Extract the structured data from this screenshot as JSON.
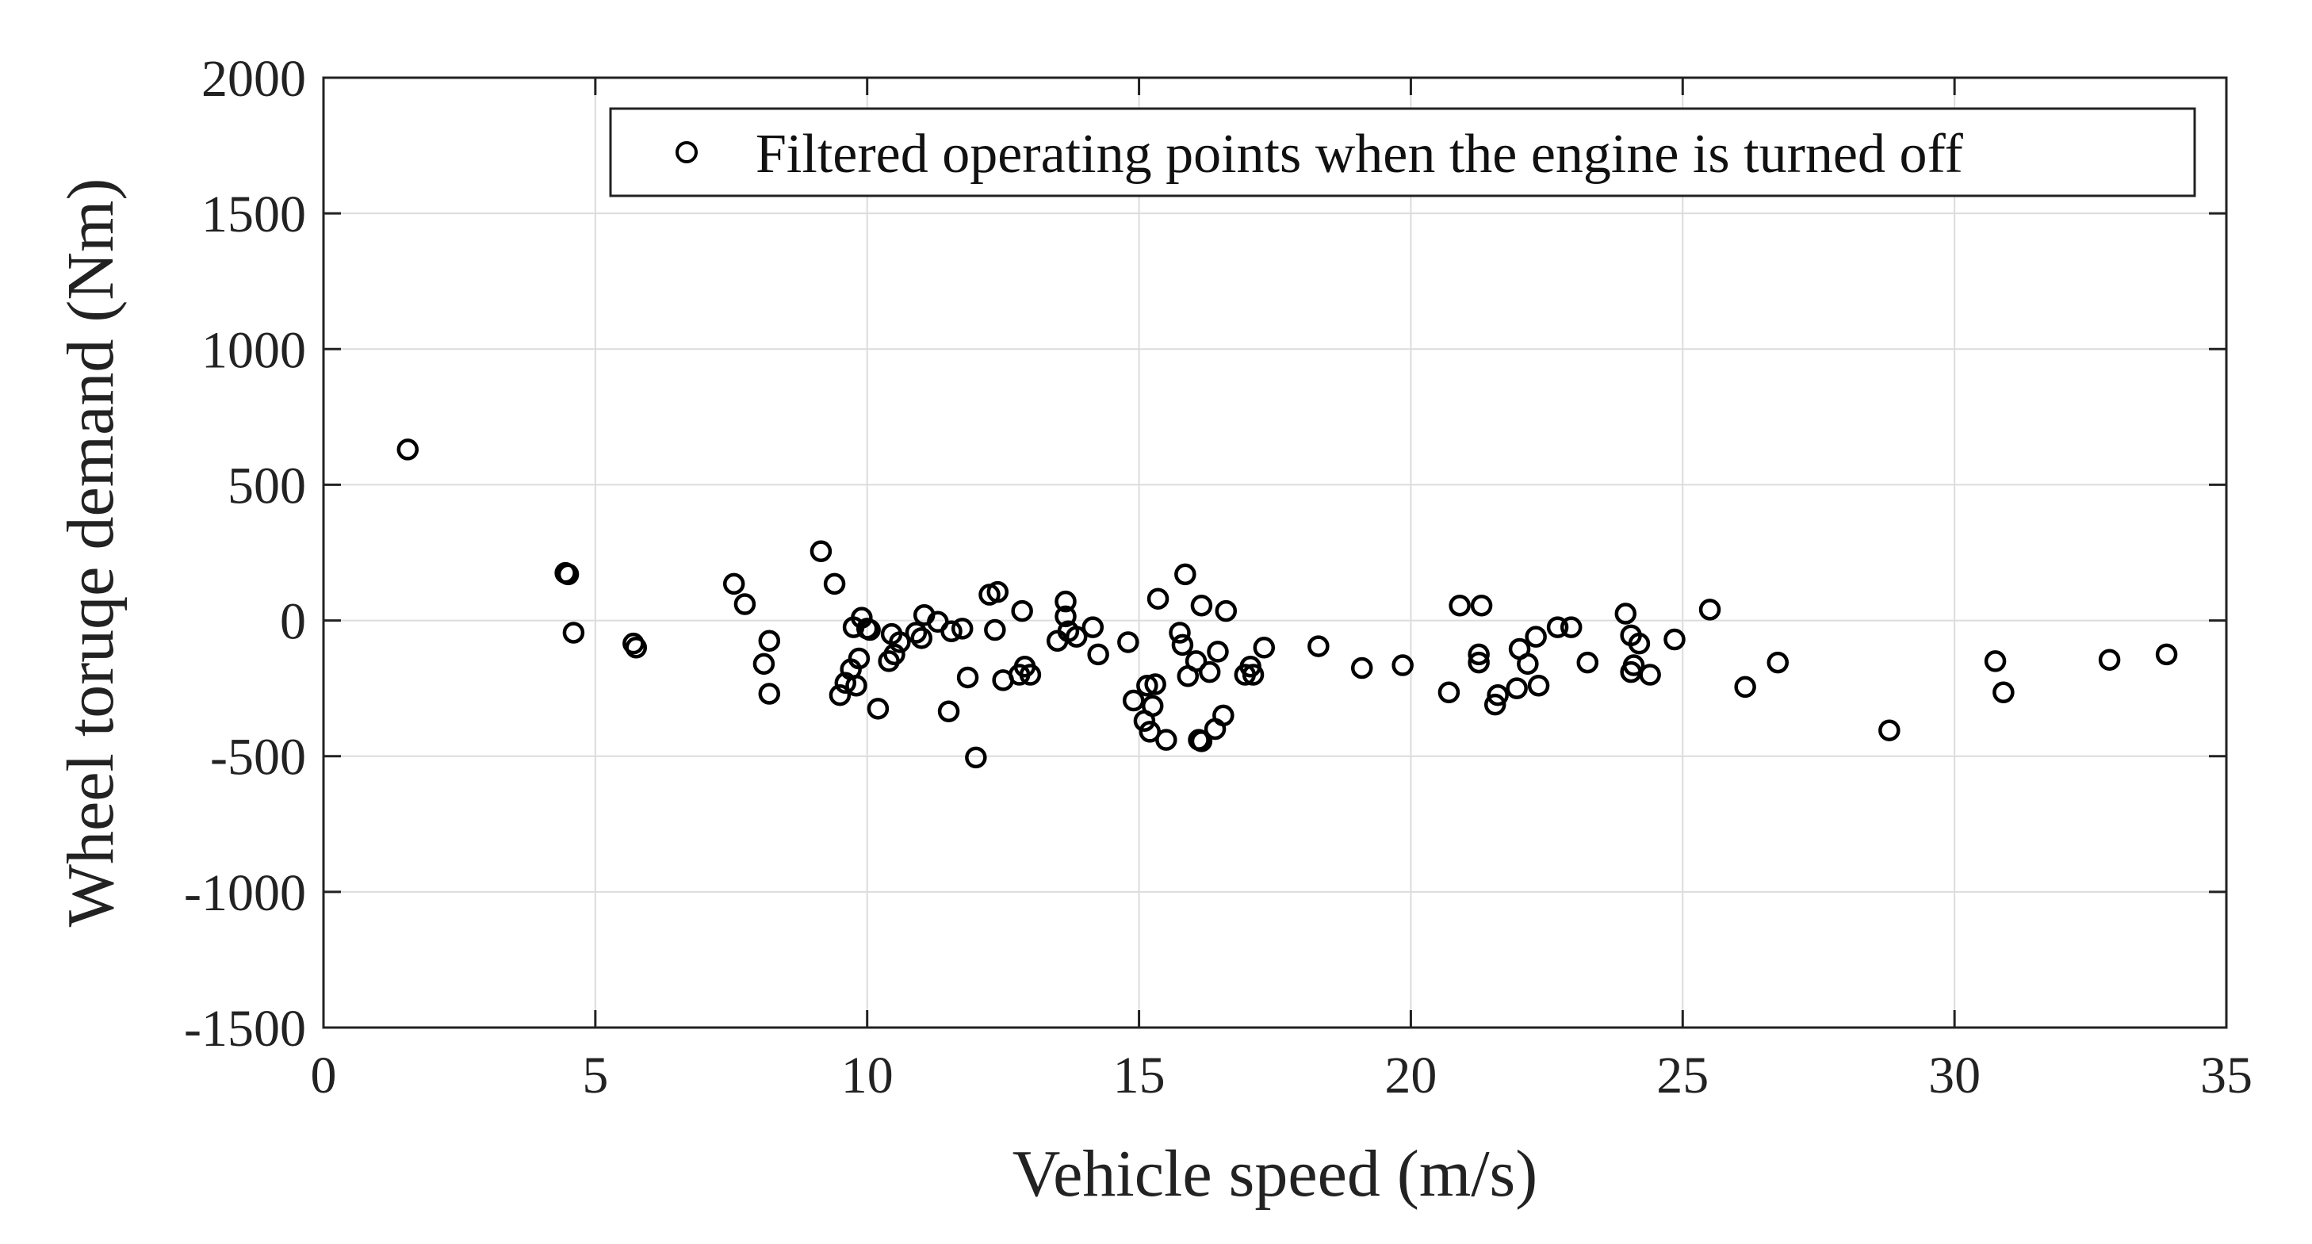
{
  "chart_data": {
    "type": "scatter",
    "title": "",
    "xlabel": "Vehicle speed (m/s)",
    "ylabel": "Wheel toruqe demand (Nm)",
    "xlim": [
      0,
      35
    ],
    "ylim": [
      -1500,
      2000
    ],
    "xticks": [
      0,
      5,
      10,
      15,
      20,
      25,
      30,
      35
    ],
    "xtick_labels": [
      "0",
      "5",
      "10",
      "15",
      "20",
      "25",
      "30",
      "35"
    ],
    "yticks": [
      -1500,
      -1000,
      -500,
      0,
      500,
      1000,
      1500,
      2000
    ],
    "ytick_labels": [
      "-1500",
      "-1000",
      "-500",
      "0",
      "500",
      "1000",
      "1500",
      "2000"
    ],
    "grid": true,
    "legend_position": "top-right",
    "marker": "open-circle",
    "colors": {
      "marker": "#000000",
      "grid": "#dcdcdc",
      "axis": "#222222"
    },
    "series": [
      {
        "name": "Filtered operating points when the engine is turned off",
        "x": [
          1.55,
          4.45,
          4.5,
          4.6,
          5.7,
          5.75,
          7.55,
          7.75,
          8.1,
          8.2,
          8.2,
          9.15,
          9.4,
          9.5,
          9.6,
          9.7,
          9.75,
          9.8,
          9.85,
          9.9,
          10.0,
          10.05,
          10.2,
          10.4,
          10.45,
          10.5,
          10.6,
          10.9,
          11.0,
          11.05,
          11.3,
          11.5,
          11.55,
          11.75,
          11.85,
          12.0,
          12.25,
          12.35,
          12.4,
          12.5,
          12.8,
          12.85,
          12.9,
          13.0,
          13.5,
          13.65,
          13.65,
          13.7,
          13.85,
          14.15,
          14.25,
          14.8,
          14.9,
          15.1,
          15.15,
          15.2,
          15.25,
          15.3,
          15.35,
          15.5,
          15.75,
          15.8,
          15.85,
          15.9,
          16.05,
          16.1,
          16.15,
          16.15,
          16.3,
          16.4,
          16.45,
          16.55,
          16.6,
          16.95,
          17.05,
          17.1,
          17.3,
          18.3,
          19.1,
          19.85,
          20.7,
          20.9,
          21.25,
          21.25,
          21.3,
          21.55,
          21.6,
          21.95,
          22.0,
          22.15,
          22.3,
          22.35,
          22.7,
          22.95,
          23.25,
          23.95,
          24.05,
          24.05,
          24.1,
          24.2,
          24.4,
          24.85,
          25.5,
          26.15,
          26.75,
          28.8,
          30.75,
          30.9,
          32.85,
          33.9
        ],
        "y": [
          630,
          175,
          170,
          -45,
          -85,
          -100,
          135,
          60,
          -160,
          -75,
          -270,
          255,
          135,
          -275,
          -230,
          -180,
          -25,
          -240,
          -140,
          10,
          -30,
          -35,
          -325,
          -150,
          -50,
          -125,
          -80,
          -45,
          -65,
          20,
          -5,
          -335,
          -40,
          -30,
          -210,
          -505,
          95,
          -35,
          105,
          -220,
          -200,
          35,
          -170,
          -200,
          -75,
          15,
          70,
          -40,
          -60,
          -25,
          -125,
          -80,
          -295,
          -370,
          -240,
          -410,
          -315,
          -235,
          80,
          -440,
          -45,
          -90,
          170,
          -205,
          -150,
          -440,
          55,
          -445,
          -190,
          -400,
          -115,
          -350,
          35,
          -200,
          -170,
          -200,
          -100,
          -95,
          -175,
          -165,
          -265,
          55,
          -125,
          -155,
          55,
          -310,
          -275,
          -250,
          -105,
          -160,
          -60,
          -240,
          -25,
          -25,
          -155,
          25,
          -55,
          -190,
          -165,
          -85,
          -200,
          -70,
          40,
          -245,
          -155,
          -405,
          -150,
          -265,
          -145,
          -125
        ]
      }
    ]
  }
}
